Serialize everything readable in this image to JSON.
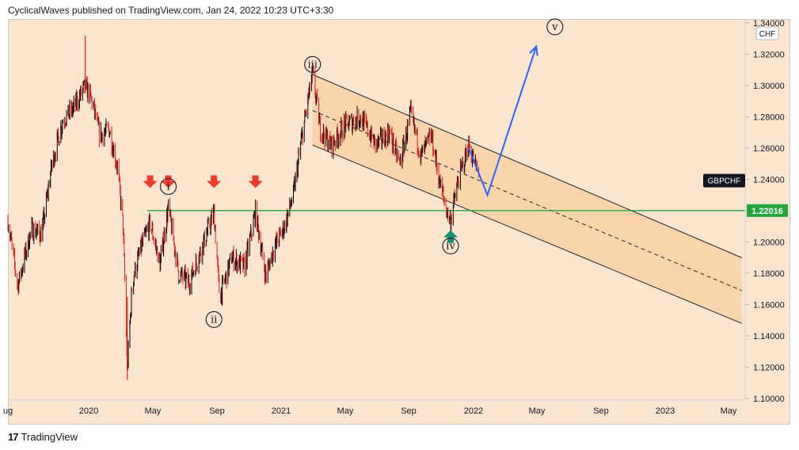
{
  "header": {
    "published": "CyclicalWaves published on TradingView.com, Jan 24, 2022 10:23 UTC+3:30"
  },
  "footer": {
    "brand": "TradingView"
  },
  "colors": {
    "background": "#fbe5cf",
    "channel_fill": "#f9c990",
    "support_line": "#22a63a",
    "projection_line": "#2962ff",
    "down_arrow": "#ef3b2c",
    "up_arrow": "#138d75",
    "candle_up": "#000000",
    "candle_down": "#e0201b",
    "symbol_tag": "#131722"
  },
  "chart_data": {
    "type": "candlestick",
    "symbol": "GBPCHF",
    "currency": "CHF",
    "y_axis": {
      "labels": [
        "1.34000",
        "1.32000",
        "1.30000",
        "1.28000",
        "1.26000",
        "1.24000",
        "1.22000",
        "1.20000",
        "1.18000",
        "1.16000",
        "1.14000",
        "1.12000",
        "1.10000"
      ],
      "ylim": [
        1.099,
        1.342
      ]
    },
    "x_axis": {
      "labels": [
        "ug",
        "2020",
        "May",
        "Sep",
        "2021",
        "May",
        "Sep",
        "2022",
        "May",
        "Sep",
        "2023",
        "May"
      ],
      "xlim": [
        "2019-08-01",
        "2023-06-20"
      ]
    },
    "price_label": "1.22016",
    "support_level": 1.2201,
    "symbol_tag": "GBPCHF",
    "wave_labels": [
      {
        "text": "i",
        "date": "2020-06-05",
        "price": 1.2355
      },
      {
        "text": "ii",
        "date": "2020-09-01",
        "price": 1.1505
      },
      {
        "text": "iii",
        "date": "2021-03-10",
        "price": 1.3135
      },
      {
        "text": "iv",
        "date": "2021-12-01",
        "price": 1.1975
      },
      {
        "text": "v",
        "date": "2022-06-20",
        "price": 1.3375
      }
    ],
    "down_arrows": [
      {
        "date": "2020-05-01",
        "price": 1.2355
      },
      {
        "date": "2020-06-05",
        "price": 1.2355
      },
      {
        "date": "2020-09-01",
        "price": 1.2355
      },
      {
        "date": "2020-11-20",
        "price": 1.2355
      }
    ],
    "up_arrows": [
      {
        "date": "2021-12-01",
        "price": 1.2065
      }
    ],
    "price_path": [
      [
        "2019-08-01",
        1.214
      ],
      [
        "2019-08-20",
        1.172
      ],
      [
        "2019-09-15",
        1.208
      ],
      [
        "2019-10-05",
        1.205
      ],
      [
        "2019-10-25",
        1.25
      ],
      [
        "2019-11-15",
        1.278
      ],
      [
        "2019-12-05",
        1.285
      ],
      [
        "2019-12-28",
        1.3
      ],
      [
        "2020-01-10",
        1.29
      ],
      [
        "2020-01-25",
        1.268
      ],
      [
        "2020-02-12",
        1.272
      ],
      [
        "2020-02-28",
        1.248
      ],
      [
        "2020-03-10",
        1.21
      ],
      [
        "2020-03-18",
        1.118
      ],
      [
        "2020-03-28",
        1.176
      ],
      [
        "2020-04-15",
        1.198
      ],
      [
        "2020-05-01",
        1.212
      ],
      [
        "2020-05-20",
        1.186
      ],
      [
        "2020-06-05",
        1.222
      ],
      [
        "2020-06-25",
        1.18
      ],
      [
        "2020-07-15",
        1.174
      ],
      [
        "2020-08-10",
        1.198
      ],
      [
        "2020-08-25",
        1.212
      ],
      [
        "2020-09-01",
        1.219
      ],
      [
        "2020-09-12",
        1.164
      ],
      [
        "2020-10-05",
        1.19
      ],
      [
        "2020-10-30",
        1.184
      ],
      [
        "2020-11-20",
        1.219
      ],
      [
        "2020-12-10",
        1.178
      ],
      [
        "2020-12-25",
        1.196
      ],
      [
        "2021-01-15",
        1.21
      ],
      [
        "2021-02-01",
        1.23
      ],
      [
        "2021-02-15",
        1.262
      ],
      [
        "2021-03-01",
        1.29
      ],
      [
        "2021-03-10",
        1.308
      ],
      [
        "2021-03-25",
        1.272
      ],
      [
        "2021-04-15",
        1.262
      ],
      [
        "2021-05-10",
        1.274
      ],
      [
        "2021-06-10",
        1.28
      ],
      [
        "2021-07-10",
        1.262
      ],
      [
        "2021-08-05",
        1.27
      ],
      [
        "2021-08-25",
        1.25
      ],
      [
        "2021-09-15",
        1.282
      ],
      [
        "2021-10-05",
        1.255
      ],
      [
        "2021-10-25",
        1.268
      ],
      [
        "2021-11-10",
        1.238
      ],
      [
        "2021-11-25",
        1.218
      ],
      [
        "2021-12-01",
        1.214
      ],
      [
        "2021-12-15",
        1.238
      ],
      [
        "2022-01-05",
        1.262
      ],
      [
        "2022-01-24",
        1.242
      ]
    ],
    "channel": {
      "upper": [
        [
          "2021-03-10",
          1.307
        ],
        [
          "2023-06-15",
          1.19
        ]
      ],
      "lower": [
        [
          "2021-03-10",
          1.262
        ],
        [
          "2023-06-15",
          1.148
        ]
      ],
      "middle": [
        [
          "2021-03-10",
          1.284
        ],
        [
          "2023-06-15",
          1.169
        ]
      ]
    },
    "projection": [
      [
        "2022-01-05",
        1.26
      ],
      [
        "2022-02-10",
        1.23
      ],
      [
        "2022-05-15",
        1.325
      ]
    ],
    "grid": false,
    "legend": "none"
  }
}
